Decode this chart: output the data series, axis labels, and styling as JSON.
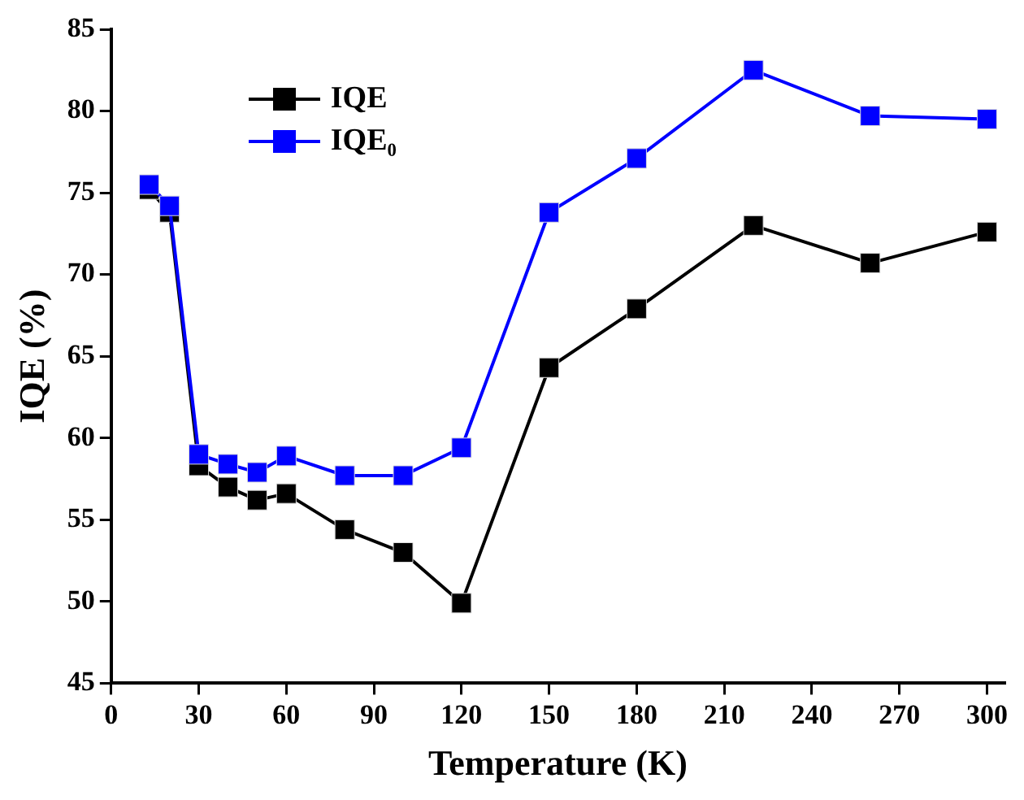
{
  "chart_data": {
    "type": "line",
    "xlabel": "Temperature (K)",
    "ylabel": "IQE (%)",
    "x": [
      13,
      20,
      30,
      40,
      50,
      60,
      80,
      100,
      120,
      150,
      180,
      220,
      260,
      300
    ],
    "series": [
      {
        "name": "IQE",
        "color": "#000000",
        "values": [
          75.2,
          73.8,
          58.3,
          57.0,
          56.2,
          56.6,
          54.4,
          53.0,
          49.9,
          64.3,
          67.9,
          73.0,
          70.7,
          72.6
        ]
      },
      {
        "name": "IQE₀",
        "color": "#0000ff",
        "values": [
          75.5,
          74.2,
          59.0,
          58.4,
          57.9,
          58.9,
          57.7,
          57.7,
          59.4,
          73.8,
          77.1,
          82.5,
          79.7,
          79.5
        ]
      }
    ],
    "xlim": [
      0,
      306
    ],
    "xticks": [
      0,
      30,
      60,
      90,
      120,
      150,
      180,
      210,
      240,
      270,
      300
    ],
    "ylim": [
      45,
      85
    ],
    "yticks": [
      45,
      50,
      55,
      60,
      65,
      70,
      75,
      80,
      85
    ],
    "marker": "square",
    "line_style": "solid",
    "legend": "top left"
  }
}
